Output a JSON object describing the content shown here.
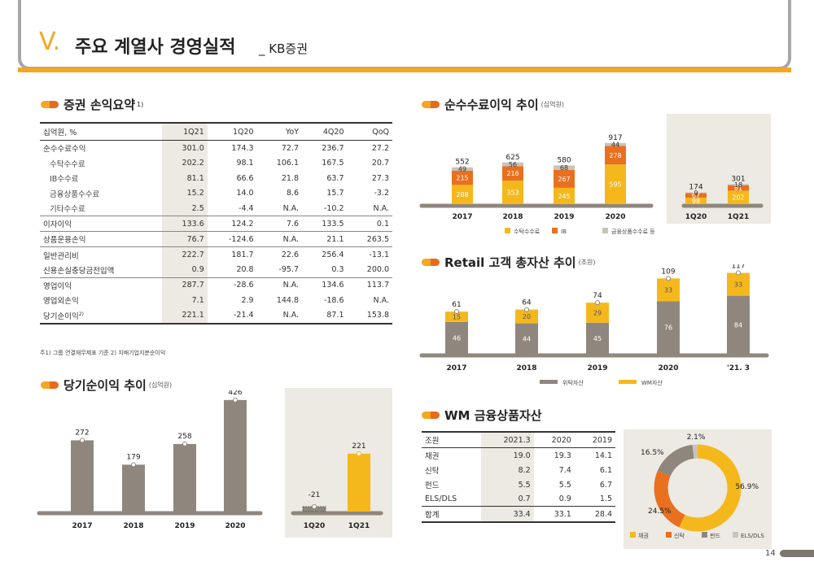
{
  "header": {
    "roman": "V.",
    "title": "주요 계열사 경영실적",
    "subtitle": "_ KB증권"
  },
  "colors": {
    "orange": "#f5b81c",
    "dark_orange": "#e8701f",
    "gray": "#8f877d",
    "light_gray": "#c9c3ba",
    "panel": "#ede9e3",
    "accent": "#f5a623"
  },
  "income_summary": {
    "title": "증권 손익요약",
    "footnote_mark": "1)",
    "columns": [
      "십억원, %",
      "1Q21",
      "1Q20",
      "YoY",
      "4Q20",
      "QoQ"
    ],
    "rows": [
      [
        "순수수료수익",
        "301.0",
        "174.3",
        "72.7",
        "236.7",
        "27.2"
      ],
      [
        "수탁수수료",
        "202.2",
        "98.1",
        "106.1",
        "167.5",
        "20.7"
      ],
      [
        "IB수수료",
        "81.1",
        "66.6",
        "21.8",
        "63.7",
        "27.3"
      ],
      [
        "금융상품수수료",
        "15.2",
        "14.0",
        "8.6",
        "15.7",
        "-3.2"
      ],
      [
        "기타수수료",
        "2.5",
        "-4.4",
        "N.A.",
        "-10.2",
        "N.A."
      ],
      [
        "이자이익",
        "133.6",
        "124.2",
        "7.6",
        "133.5",
        "0.1"
      ],
      [
        "상품운용손익",
        "76.7",
        "-124.6",
        "N.A.",
        "21.1",
        "263.5"
      ],
      [
        "일반관리비",
        "222.7",
        "181.7",
        "22.6",
        "256.4",
        "-13.1"
      ],
      [
        "신용손실충당금전입액",
        "0.9",
        "20.8",
        "-95.7",
        "0.3",
        "200.0"
      ],
      [
        "영업이익",
        "287.7",
        "-28.6",
        "N.A.",
        "134.6",
        "113.7"
      ],
      [
        "영업외손익",
        "7.1",
        "2.9",
        "144.8",
        "-18.6",
        "N.A."
      ],
      [
        "당기순이익",
        "221.1",
        "-21.4",
        "N.A.",
        "87.1",
        "153.8"
      ]
    ],
    "net_income_mark": "2)",
    "note": "주1) 그룹 연결재무제표 기준   2) 지배기업지분순이익"
  },
  "net_income_title": "당기순이익 추이",
  "net_income_unit": "(십억원)",
  "fee_title": "순수수료이익 추이",
  "fee_unit": "(십억원)",
  "retail_title": "Retail 고객 총자산 추이",
  "retail_unit": "(조원)",
  "wm_title": "WM 금융상품자산",
  "wm_table": {
    "columns": [
      "조원",
      "2021.3",
      "2020",
      "2019"
    ],
    "rows": [
      [
        "채권",
        "19.0",
        "19.3",
        "14.1"
      ],
      [
        "신탁",
        "8.2",
        "7.4",
        "6.1"
      ],
      [
        "펀드",
        "5.5",
        "5.5",
        "6.7"
      ],
      [
        "ELS/DLS",
        "0.7",
        "0.9",
        "1.5"
      ]
    ],
    "total": [
      "합계",
      "33.4",
      "33.1",
      "28.4"
    ]
  },
  "chart_data": [
    {
      "id": "fee_income",
      "type": "bar",
      "stacked": true,
      "categories": [
        "2017",
        "2018",
        "2019",
        "2020",
        "1Q20",
        "1Q21"
      ],
      "series": [
        {
          "name": "수탁수수료",
          "values": [
            288,
            353,
            245,
            595,
            98,
            202
          ]
        },
        {
          "name": "IB",
          "values": [
            215,
            216,
            267,
            278,
            67,
            81
          ]
        },
        {
          "name": "금융상품수수료 등",
          "values": [
            49,
            56,
            68,
            44,
            9,
            18
          ]
        }
      ],
      "totals": [
        552,
        625,
        580,
        917,
        174,
        301
      ],
      "legend": [
        "수탁수수료",
        "IB",
        "금융상품수수료 등"
      ]
    },
    {
      "id": "retail_assets",
      "type": "bar",
      "stacked": true,
      "categories": [
        "2017",
        "2018",
        "2019",
        "2020",
        "'21. 3"
      ],
      "series": [
        {
          "name": "위탁자산",
          "values": [
            46,
            44,
            45,
            76,
            84
          ]
        },
        {
          "name": "WM자산",
          "values": [
            15,
            20,
            29,
            33,
            33
          ]
        }
      ],
      "totals": [
        61,
        64,
        74,
        109,
        117
      ],
      "legend": [
        "위탁자산",
        "WM자산"
      ]
    },
    {
      "id": "net_income",
      "type": "bar",
      "categories": [
        "2017",
        "2018",
        "2019",
        "2020",
        "1Q20",
        "1Q21"
      ],
      "values": [
        272,
        179,
        258,
        426,
        -21,
        221
      ]
    },
    {
      "id": "wm_pie",
      "type": "pie",
      "categories": [
        "채권",
        "신탁",
        "펀드",
        "ELS/DLS"
      ],
      "values": [
        56.9,
        24.5,
        16.5,
        2.1
      ],
      "labels": [
        "56.9%",
        "24.5%",
        "16.5%",
        "2.1%"
      ],
      "legend": [
        "채권",
        "신탁",
        "펀드",
        "ELS/DLS"
      ]
    }
  ],
  "page_number": "14"
}
